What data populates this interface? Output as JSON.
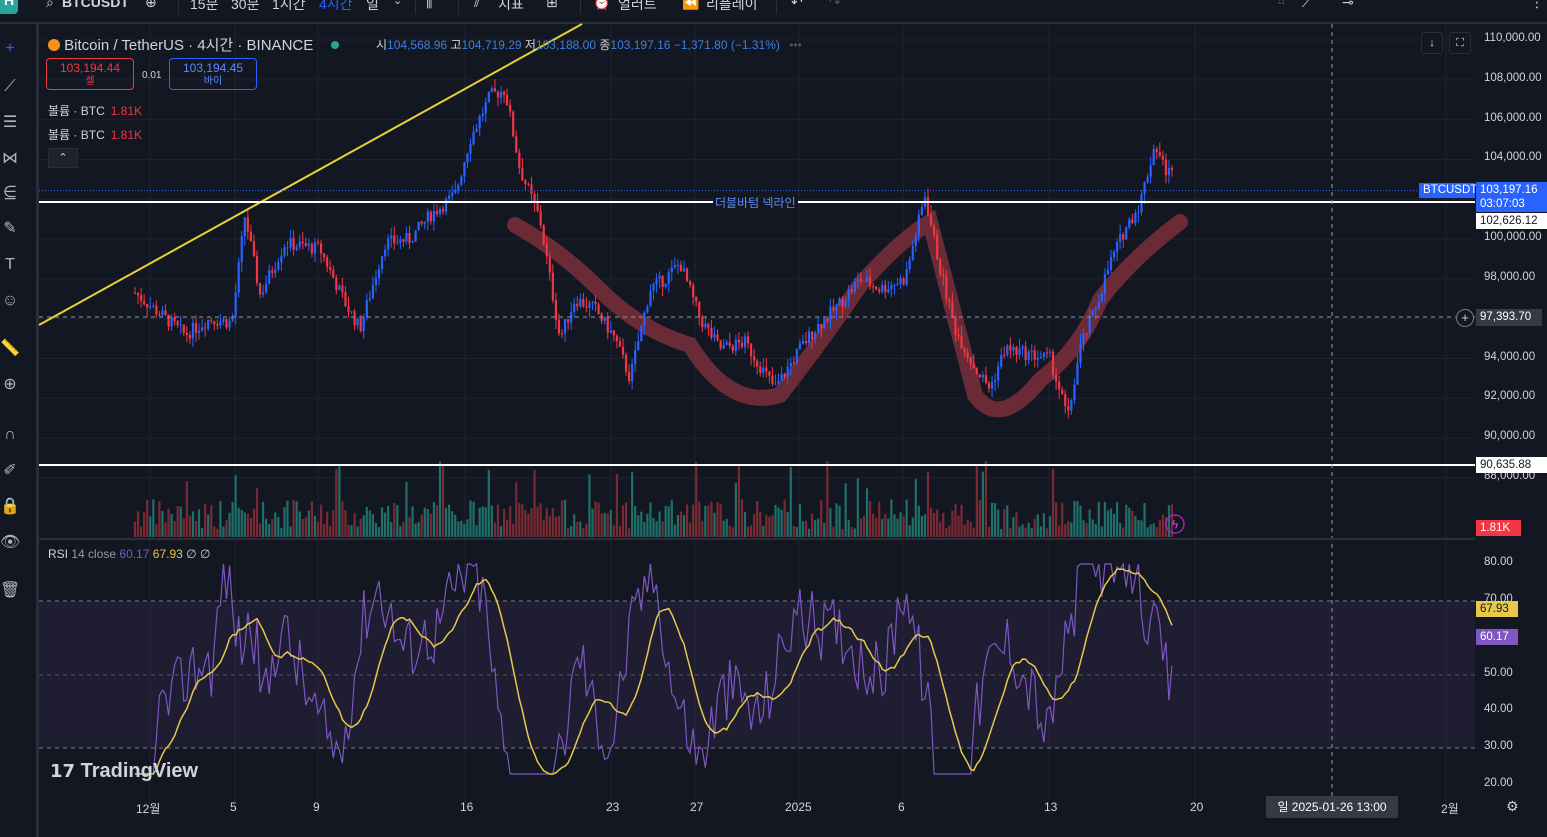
{
  "topbar": {
    "badge": "H",
    "symbol": "BTCUSDT",
    "intervals": [
      "15분",
      "30분",
      "1시간",
      "4시간",
      "일"
    ],
    "active_interval": "4시간",
    "indicators": "지표",
    "alert": "얼러트",
    "replay": "리플레이"
  },
  "legend": {
    "title": "Bitcoin / TetherUS · 4시간 · BINANCE",
    "open_label": "시",
    "open": "104,568.96",
    "high_label": "고",
    "high": "104,719.29",
    "low_label": "저",
    "low": "103,188.00",
    "close_label": "종",
    "close": "103,197.16",
    "change": "−1,371.80 (−1.31%)"
  },
  "trade": {
    "sell_price": "103,194.44",
    "sell_label": "셀",
    "spread": "0.01",
    "buy_price": "103,194.45",
    "buy_label": "바이"
  },
  "volume_legend": [
    {
      "label": "볼륨 · BTC",
      "value": "1.81K"
    },
    {
      "label": "볼륨 · BTC",
      "value": "1.81K"
    }
  ],
  "drawings": {
    "neckline_label": "더블바텀 넥라인",
    "neckline_price": "102,626.12",
    "support_price": "90,635.88",
    "crosshair_price": "97,393.70"
  },
  "price_axis": [
    "110,000.00",
    "108,000.00",
    "106,000.00",
    "104,000.00",
    "102,000.00",
    "100,000.00",
    "98,000.00",
    "96,000.00",
    "94,000.00",
    "92,000.00",
    "90,000.00",
    "88,000.00"
  ],
  "last_price": {
    "symbol": "BTCUSDT",
    "price": "103,197.16",
    "countdown": "03:07:03"
  },
  "volume_tag": "1.81K",
  "rsi": {
    "name": "RSI",
    "params": "14 close",
    "value": "60.17",
    "ma": "67.93",
    "extra1": "∅",
    "extra2": "∅",
    "axis": [
      "80.00",
      "70.00",
      "60.00",
      "50.00",
      "40.00",
      "30.00",
      "20.00"
    ]
  },
  "time_axis": [
    "12월",
    "5",
    "9",
    "16",
    "23",
    "27",
    "2025",
    "6",
    "13",
    "20",
    "2월"
  ],
  "crosshair_date": "일 2025-01-26   13:00",
  "brand": "TradingView",
  "colors": {
    "up": "#2962ff",
    "down": "#f23645",
    "bg": "#131722",
    "neckline": "#ffffff",
    "trendline": "#e6d435",
    "rsi_line": "#7e57c2",
    "rsi_ma": "#e6c84a",
    "highlight": "#7a2e3a"
  },
  "chart_data": {
    "type": "candlestick",
    "title": "Bitcoin / TetherUS · 4시간 · BINANCE",
    "price_close_path": [
      [
        "12월",
        97300
      ],
      [
        "5",
        101000
      ],
      [
        "9",
        97500
      ],
      [
        "16",
        107000
      ],
      [
        "23",
        93500
      ],
      [
        "27",
        95200
      ],
      [
        "2025",
        94500
      ],
      [
        "6",
        102300
      ],
      [
        "13",
        91000
      ],
      [
        "20",
        104500
      ],
      [
        "last",
        103197.16
      ]
    ],
    "ylim": [
      88000,
      110000
    ],
    "rsi": {
      "ylim": [
        20,
        80
      ],
      "overbought": 70,
      "oversold": 30,
      "mid": 50,
      "last": 60.17,
      "ma_last": 67.93
    }
  }
}
